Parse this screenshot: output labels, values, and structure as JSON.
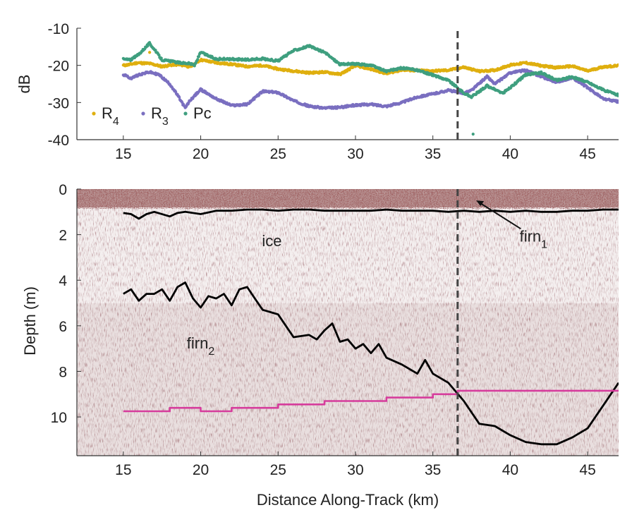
{
  "chart_data": [
    {
      "type": "scatter",
      "ylabel": "dB",
      "xlim": [
        12,
        47
      ],
      "ylim": [
        -40,
        -10
      ],
      "xticks": [
        "15",
        "20",
        "25",
        "30",
        "35",
        "40",
        "45"
      ],
      "yticks": [
        "-10",
        "-20",
        "-30",
        "-40"
      ],
      "vline_x": 36.6,
      "legend": [
        {
          "base": "R",
          "sub": "4",
          "color": "#dfaf0f"
        },
        {
          "base": "R",
          "sub": "3",
          "color": "#7a6fc0"
        },
        {
          "base": "Pc",
          "sub": "",
          "color": "#3f9f7f"
        }
      ],
      "series": [
        {
          "name": "R4",
          "color": "#dfaf0f",
          "points": [
            [
              15,
              -20
            ],
            [
              15.4,
              -19.8
            ],
            [
              15.9,
              -19.3
            ],
            [
              16.7,
              -19.5
            ],
            [
              17.5,
              -20.3
            ],
            [
              18.3,
              -19.8
            ],
            [
              19,
              -20
            ],
            [
              19.3,
              -20.5
            ],
            [
              20,
              -18.5
            ],
            [
              21,
              -19.3
            ],
            [
              22,
              -19.7
            ],
            [
              23,
              -20.3
            ],
            [
              24,
              -20
            ],
            [
              25,
              -21
            ],
            [
              26,
              -21.5
            ],
            [
              27,
              -22
            ],
            [
              28,
              -21.8
            ],
            [
              29,
              -22.4
            ],
            [
              30,
              -20.1
            ],
            [
              31,
              -21
            ],
            [
              32,
              -22.2
            ],
            [
              33,
              -21.2
            ],
            [
              34,
              -21.4
            ],
            [
              35,
              -21.5
            ],
            [
              36,
              -21.3
            ],
            [
              37,
              -20.5
            ],
            [
              38,
              -21.6
            ],
            [
              39,
              -21.3
            ],
            [
              40,
              -19.9
            ],
            [
              41,
              -19.3
            ],
            [
              42,
              -20.1
            ],
            [
              43,
              -20.6
            ],
            [
              44,
              -20.2
            ],
            [
              45,
              -21.5
            ],
            [
              46,
              -20.4
            ],
            [
              47,
              -20.1
            ]
          ]
        },
        {
          "name": "R3",
          "color": "#7a6fc0",
          "points": [
            [
              15,
              -22.5
            ],
            [
              15.5,
              -23.5
            ],
            [
              16,
              -22.5
            ],
            [
              16.7,
              -21.8
            ],
            [
              17.3,
              -22.5
            ],
            [
              18,
              -25
            ],
            [
              18.5,
              -28
            ],
            [
              19,
              -31.5
            ],
            [
              19.3,
              -29.5
            ],
            [
              20,
              -26.5
            ],
            [
              21,
              -29
            ],
            [
              22,
              -30.8
            ],
            [
              23,
              -30.5
            ],
            [
              24,
              -27
            ],
            [
              25,
              -27.3
            ],
            [
              26,
              -29.5
            ],
            [
              27,
              -31
            ],
            [
              28,
              -31.5
            ],
            [
              29,
              -31.3
            ],
            [
              30,
              -30.7
            ],
            [
              31,
              -30.5
            ],
            [
              32,
              -31
            ],
            [
              33,
              -30
            ],
            [
              34,
              -28.5
            ],
            [
              35,
              -27.7
            ],
            [
              36,
              -26.7
            ],
            [
              37,
              -27.5
            ],
            [
              37.5,
              -26.7
            ],
            [
              38.5,
              -23
            ],
            [
              39,
              -25
            ],
            [
              40,
              -22
            ],
            [
              41,
              -21.3
            ],
            [
              42,
              -23
            ],
            [
              43,
              -24.5
            ],
            [
              44,
              -23.3
            ],
            [
              45,
              -26
            ],
            [
              46,
              -29
            ],
            [
              47,
              -29.8
            ]
          ]
        },
        {
          "name": "Pc",
          "color": "#3f9f7f",
          "points": [
            [
              15,
              -18.3
            ],
            [
              15.5,
              -18.5
            ],
            [
              16,
              -17
            ],
            [
              16.7,
              -14
            ],
            [
              17.5,
              -18.5
            ],
            [
              18.5,
              -19.2
            ],
            [
              19.3,
              -19.5
            ],
            [
              19.6,
              -20
            ],
            [
              20,
              -16.5
            ],
            [
              21,
              -18.3
            ],
            [
              22,
              -18.3
            ],
            [
              23,
              -18.5
            ],
            [
              24,
              -18.2
            ],
            [
              25,
              -18.8
            ],
            [
              26,
              -16
            ],
            [
              27,
              -14.8
            ],
            [
              28,
              -16.5
            ],
            [
              29,
              -19.7
            ],
            [
              30,
              -19.6
            ],
            [
              31,
              -20
            ],
            [
              32,
              -21.6
            ],
            [
              33,
              -20.7
            ],
            [
              34,
              -21.3
            ],
            [
              35,
              -22.6
            ],
            [
              36,
              -24
            ],
            [
              37,
              -27.5
            ],
            [
              37.5,
              -28.5
            ],
            [
              38.5,
              -25.5
            ],
            [
              39.5,
              -27.5
            ],
            [
              40,
              -26
            ],
            [
              41,
              -22.5
            ],
            [
              42,
              -22
            ],
            [
              43,
              -24
            ],
            [
              44,
              -23.1
            ],
            [
              45,
              -24.5
            ],
            [
              46,
              -26.6
            ],
            [
              47,
              -28
            ]
          ]
        }
      ],
      "outliers": [
        {
          "x": 37.6,
          "y": -38.5,
          "series": "Pc"
        },
        {
          "x": 16.7,
          "y": -16.5,
          "series": "R4"
        }
      ]
    },
    {
      "type": "heatmap",
      "xlabel": "Distance Along-Track (km)",
      "ylabel": "Depth (m)",
      "xlim": [
        12,
        47
      ],
      "ylim": [
        11.7,
        0
      ],
      "xticks": [
        "15",
        "20",
        "25",
        "30",
        "35",
        "40",
        "45"
      ],
      "yticks": [
        "0",
        "2",
        "4",
        "6",
        "8",
        "10"
      ],
      "vline_x": 36.6,
      "annotations": [
        {
          "base": "ice",
          "sub": "",
          "x": 24.6,
          "y": 2.5
        },
        {
          "base": "firn",
          "sub": "1",
          "x": 41.5,
          "y": 2.3
        },
        {
          "base": "firn",
          "sub": "2",
          "x": 20,
          "y": 7.0
        }
      ],
      "series": [
        {
          "name": "firn1",
          "color": "#000000",
          "points": [
            [
              15,
              1.05
            ],
            [
              15.5,
              1.1
            ],
            [
              16,
              1.3
            ],
            [
              16.5,
              1.1
            ],
            [
              17,
              1.0
            ],
            [
              18,
              1.2
            ],
            [
              18.5,
              1.05
            ],
            [
              19,
              1.0
            ],
            [
              20,
              1.1
            ],
            [
              21,
              0.95
            ],
            [
              22,
              0.95
            ],
            [
              23,
              0.9
            ],
            [
              24,
              0.9
            ],
            [
              25,
              0.95
            ],
            [
              26,
              0.9
            ],
            [
              27,
              0.9
            ],
            [
              28,
              0.95
            ],
            [
              29,
              0.95
            ],
            [
              30,
              0.95
            ],
            [
              31,
              0.95
            ],
            [
              32,
              0.9
            ],
            [
              33,
              0.95
            ],
            [
              34,
              0.95
            ],
            [
              35,
              0.95
            ],
            [
              36,
              1.0
            ],
            [
              37,
              0.95
            ],
            [
              38,
              1.0
            ],
            [
              39,
              0.95
            ],
            [
              40,
              1.0
            ],
            [
              41,
              0.95
            ],
            [
              42,
              1.0
            ],
            [
              43,
              1.0
            ],
            [
              44,
              0.95
            ],
            [
              45,
              0.95
            ],
            [
              46,
              0.9
            ],
            [
              47,
              0.9
            ]
          ]
        },
        {
          "name": "firn2",
          "color": "#000000",
          "points": [
            [
              15,
              4.6
            ],
            [
              15.5,
              4.4
            ],
            [
              16,
              4.9
            ],
            [
              16.5,
              4.6
            ],
            [
              17,
              4.6
            ],
            [
              17.5,
              4.4
            ],
            [
              18,
              4.9
            ],
            [
              18.5,
              4.3
            ],
            [
              19,
              4.1
            ],
            [
              19.5,
              4.8
            ],
            [
              20,
              5.2
            ],
            [
              20.5,
              4.7
            ],
            [
              21,
              4.8
            ],
            [
              21.5,
              4.6
            ],
            [
              22,
              5.1
            ],
            [
              22.5,
              4.4
            ],
            [
              23,
              4.3
            ],
            [
              23.5,
              4.8
            ],
            [
              24,
              5.3
            ],
            [
              25,
              5.5
            ],
            [
              25.5,
              6.0
            ],
            [
              26,
              6.5
            ],
            [
              27,
              6.4
            ],
            [
              27.5,
              6.6
            ],
            [
              28,
              6.2
            ],
            [
              28.5,
              5.9
            ],
            [
              29,
              6.7
            ],
            [
              29.5,
              6.6
            ],
            [
              30,
              7.0
            ],
            [
              30.5,
              6.8
            ],
            [
              31,
              7.2
            ],
            [
              31.5,
              6.8
            ],
            [
              32,
              7.4
            ],
            [
              33,
              7.7
            ],
            [
              34,
              8.1
            ],
            [
              34.5,
              7.5
            ],
            [
              35,
              8.1
            ],
            [
              36,
              8.5
            ],
            [
              37,
              9.3
            ],
            [
              38,
              10.3
            ],
            [
              39,
              10.4
            ],
            [
              40,
              10.8
            ],
            [
              41,
              11.1
            ],
            [
              42,
              11.2
            ],
            [
              43,
              11.2
            ],
            [
              44,
              10.9
            ],
            [
              45,
              10.5
            ],
            [
              46,
              9.5
            ],
            [
              47,
              8.5
            ]
          ]
        },
        {
          "name": "reference",
          "color": "#d63c9c",
          "points": [
            [
              15,
              9.75
            ],
            [
              18,
              9.75
            ],
            [
              18,
              9.6
            ],
            [
              20,
              9.6
            ],
            [
              20,
              9.75
            ],
            [
              22,
              9.75
            ],
            [
              22,
              9.6
            ],
            [
              25,
              9.6
            ],
            [
              25,
              9.45
            ],
            [
              28,
              9.45
            ],
            [
              28,
              9.3
            ],
            [
              32,
              9.3
            ],
            [
              32,
              9.15
            ],
            [
              35,
              9.15
            ],
            [
              35,
              9.0
            ],
            [
              36.6,
              9.0
            ],
            [
              36.6,
              8.85
            ],
            [
              47,
              8.85
            ]
          ]
        }
      ]
    }
  ]
}
